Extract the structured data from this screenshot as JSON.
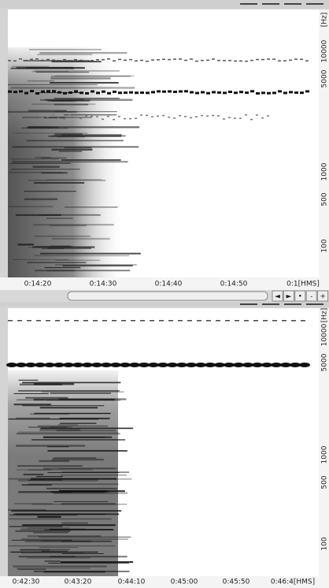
{
  "panels": [
    {
      "time_labels": [
        "0:14:20",
        "0:14:30",
        "0:14:40",
        "0:14:50",
        "0:1[HMS]"
      ],
      "freq_unit": "[Hz]",
      "freq_labels": [
        "10000",
        "5000",
        "1000",
        "500",
        "100"
      ]
    },
    {
      "time_labels": [
        "0:42:30",
        "0:43:20",
        "0:44:10",
        "0:45:00",
        "0:45:50",
        "0:46:4[HMS]"
      ],
      "freq_unit": "[Hz]",
      "freq_labels": [
        "10000",
        "5000",
        "1000",
        "500",
        "100"
      ]
    }
  ],
  "scrollbar": {
    "buttons": [
      "◄",
      "►",
      "•",
      "-",
      "+"
    ]
  }
}
